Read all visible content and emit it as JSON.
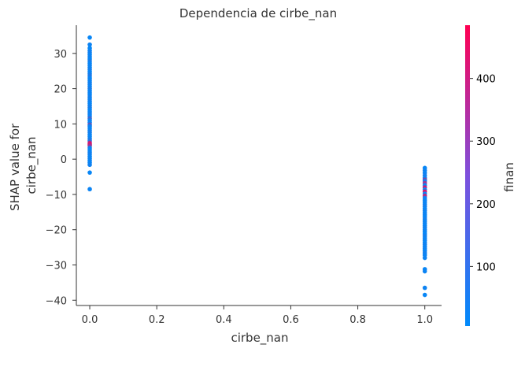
{
  "chart_data": {
    "type": "scatter",
    "title": "Dependencia de cirbe_nan",
    "xlabel": "cirbe_nan",
    "ylabel_lines": [
      "SHAP value for",
      "cirbe_nan"
    ],
    "xlim": [
      -0.04,
      1.05
    ],
    "ylim": [
      -41.5,
      38
    ],
    "xticks": [
      0.0,
      0.2,
      0.4,
      0.6,
      0.8,
      1.0
    ],
    "xtick_labels": [
      "0.0",
      "0.2",
      "0.4",
      "0.6",
      "0.8",
      "1.0"
    ],
    "yticks": [
      30,
      20,
      10,
      0,
      -10,
      -20,
      -30,
      -40
    ],
    "ytick_labels": [
      "30",
      "20",
      "10",
      "0",
      "−10",
      "−20",
      "−30",
      "−40"
    ],
    "grid": false,
    "colorbar": {
      "label": "finan",
      "range": [
        5,
        485
      ],
      "ticks": [
        100,
        200,
        300,
        400
      ],
      "tick_labels": [
        "100",
        "200",
        "300",
        "400"
      ],
      "color_low": "#008afb",
      "color_high": "#ff0052"
    },
    "series": [
      {
        "x_group": 0,
        "points": [
          [
            0,
            34.5,
            20
          ],
          [
            0,
            32.5,
            30
          ],
          [
            0,
            31.5,
            15
          ],
          [
            0,
            30.8,
            25
          ],
          [
            0,
            30.2,
            40
          ],
          [
            0,
            29.6,
            20
          ],
          [
            0,
            29.0,
            35
          ],
          [
            0,
            28.4,
            15
          ],
          [
            0,
            27.8,
            50
          ],
          [
            0,
            27.2,
            20
          ],
          [
            0,
            26.6,
            30
          ],
          [
            0,
            26.0,
            25
          ],
          [
            0,
            25.4,
            45
          ],
          [
            0,
            24.8,
            20
          ],
          [
            0,
            24.2,
            35
          ],
          [
            0,
            23.6,
            60
          ],
          [
            0,
            23.0,
            20
          ],
          [
            0,
            22.4,
            30
          ],
          [
            0,
            21.8,
            25
          ],
          [
            0,
            21.2,
            40
          ],
          [
            0,
            20.6,
            20
          ],
          [
            0,
            20.0,
            55
          ],
          [
            0,
            19.4,
            25
          ],
          [
            0,
            18.8,
            30
          ],
          [
            0,
            18.2,
            20
          ],
          [
            0,
            17.6,
            45
          ],
          [
            0,
            17.0,
            25
          ],
          [
            0,
            16.4,
            35
          ],
          [
            0,
            15.8,
            20
          ],
          [
            0,
            15.2,
            30
          ],
          [
            0,
            14.6,
            50
          ],
          [
            0,
            14.0,
            20
          ],
          [
            0,
            13.4,
            25
          ],
          [
            0,
            12.8,
            40
          ],
          [
            0,
            12.2,
            20
          ],
          [
            0,
            11.6,
            120
          ],
          [
            0,
            11.0,
            30
          ],
          [
            0,
            10.4,
            20
          ],
          [
            0,
            9.8,
            200
          ],
          [
            0,
            9.4,
            35
          ],
          [
            0,
            8.8,
            20
          ],
          [
            0,
            8.2,
            25
          ],
          [
            0,
            7.6,
            45
          ],
          [
            0,
            7.0,
            30
          ],
          [
            0,
            6.4,
            20
          ],
          [
            0,
            5.8,
            35
          ],
          [
            0,
            5.2,
            80
          ],
          [
            0,
            4.6,
            360
          ],
          [
            0,
            4.2,
            420
          ],
          [
            0,
            3.8,
            300
          ],
          [
            0,
            3.2,
            30
          ],
          [
            0,
            2.6,
            20
          ],
          [
            0,
            2.0,
            25
          ],
          [
            0,
            1.4,
            40
          ],
          [
            0,
            0.8,
            20
          ],
          [
            0,
            0.2,
            30
          ],
          [
            0,
            -0.4,
            25
          ],
          [
            0,
            -1.0,
            20
          ],
          [
            0,
            -1.6,
            35
          ],
          [
            0,
            -3.8,
            20
          ],
          [
            0,
            -8.5,
            25
          ]
        ]
      },
      {
        "x_group": 1,
        "points": [
          [
            1,
            -2.5,
            20
          ],
          [
            1,
            -3.2,
            30
          ],
          [
            1,
            -3.9,
            25
          ],
          [
            1,
            -4.6,
            40
          ],
          [
            1,
            -5.3,
            20
          ],
          [
            1,
            -5.8,
            250
          ],
          [
            1,
            -6.2,
            35
          ],
          [
            1,
            -6.8,
            300
          ],
          [
            1,
            -7.4,
            20
          ],
          [
            1,
            -8.0,
            380
          ],
          [
            1,
            -8.6,
            30
          ],
          [
            1,
            -9.2,
            420
          ],
          [
            1,
            -9.8,
            25
          ],
          [
            1,
            -10.4,
            350
          ],
          [
            1,
            -11.0,
            40
          ],
          [
            1,
            -11.6,
            20
          ],
          [
            1,
            -12.2,
            30
          ],
          [
            1,
            -12.8,
            25
          ],
          [
            1,
            -13.4,
            45
          ],
          [
            1,
            -14.0,
            20
          ],
          [
            1,
            -14.6,
            35
          ],
          [
            1,
            -15.2,
            25
          ],
          [
            1,
            -15.8,
            30
          ],
          [
            1,
            -16.4,
            20
          ],
          [
            1,
            -17.0,
            40
          ],
          [
            1,
            -17.6,
            25
          ],
          [
            1,
            -18.2,
            30
          ],
          [
            1,
            -18.8,
            20
          ],
          [
            1,
            -19.4,
            35
          ],
          [
            1,
            -20.0,
            25
          ],
          [
            1,
            -20.6,
            30
          ],
          [
            1,
            -21.2,
            20
          ],
          [
            1,
            -21.8,
            45
          ],
          [
            1,
            -22.4,
            25
          ],
          [
            1,
            -23.0,
            30
          ],
          [
            1,
            -23.6,
            20
          ],
          [
            1,
            -24.2,
            35
          ],
          [
            1,
            -24.8,
            25
          ],
          [
            1,
            -25.4,
            30
          ],
          [
            1,
            -26.0,
            20
          ],
          [
            1,
            -26.6,
            40
          ],
          [
            1,
            -27.2,
            25
          ],
          [
            1,
            -28.0,
            30
          ],
          [
            1,
            -31.2,
            20
          ],
          [
            1,
            -31.8,
            25
          ],
          [
            1,
            -36.5,
            30
          ],
          [
            1,
            -38.5,
            20
          ]
        ]
      }
    ]
  }
}
